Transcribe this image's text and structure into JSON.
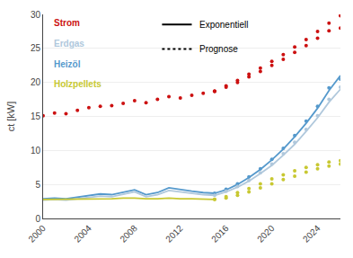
{
  "chart_data": {
    "type": "line",
    "x": [
      2000,
      2001,
      2002,
      2003,
      2004,
      2005,
      2006,
      2007,
      2008,
      2009,
      2010,
      2011,
      2012,
      2013,
      2014,
      2015,
      2016,
      2017,
      2018,
      2019,
      2020,
      2021,
      2022,
      2023,
      2024,
      2025,
      2026
    ],
    "ylabel": "ct [kW]",
    "xlim": [
      2000,
      2026
    ],
    "xticks": [
      2000,
      2004,
      2008,
      2012,
      2016,
      2020,
      2024
    ],
    "ylim": [
      0,
      30
    ],
    "yticks": [
      0,
      5,
      10,
      15,
      20,
      25,
      30
    ],
    "grid": "y",
    "series": [
      {
        "name": "Strom",
        "color": "#cc1111",
        "line_style": "none",
        "marker": "circle",
        "values": [
          15.1,
          15.5,
          15.4,
          15.9,
          16.3,
          16.5,
          16.6,
          16.9,
          17.3,
          17.0,
          17.5,
          17.9,
          17.7,
          18.1,
          18.4,
          18.7,
          null,
          null,
          null,
          null,
          null,
          null,
          null,
          null,
          null,
          null,
          null
        ]
      },
      {
        "name": "Strom",
        "projection": "Exponentiell",
        "color": "#cc1111",
        "line_style": "none",
        "marker": "circle",
        "values": [
          null,
          null,
          null,
          null,
          null,
          null,
          null,
          null,
          null,
          null,
          null,
          null,
          null,
          null,
          null,
          18.7,
          19.5,
          20.3,
          21.2,
          22.1,
          23.1,
          24.1,
          25.2,
          26.3,
          27.5,
          28.7,
          29.8
        ]
      },
      {
        "name": "Strom",
        "projection": "Prognose",
        "color": "#cc1111",
        "line_style": "none",
        "marker": "circle",
        "values": [
          null,
          null,
          null,
          null,
          null,
          null,
          null,
          null,
          null,
          null,
          null,
          null,
          null,
          null,
          null,
          18.7,
          19.3,
          20.0,
          20.8,
          21.6,
          22.5,
          23.4,
          24.4,
          25.4,
          26.5,
          27.6,
          28.0
        ]
      },
      {
        "name": "Heizöl",
        "color": "#5599cc",
        "line_style": "solid",
        "marker": "none",
        "values": [
          2.9,
          3.0,
          2.9,
          3.1,
          3.4,
          3.6,
          3.5,
          3.8,
          4.2,
          3.5,
          3.8,
          4.5,
          4.2,
          4.0,
          3.8,
          3.7,
          null,
          null,
          null,
          null,
          null,
          null,
          null,
          null,
          null,
          null,
          null
        ]
      },
      {
        "name": "Heizöl",
        "projection": "Exponentiell",
        "color": "#5599cc",
        "line_style": "solid",
        "marker": "none",
        "values": [
          null,
          null,
          null,
          null,
          null,
          null,
          null,
          null,
          null,
          null,
          null,
          null,
          null,
          null,
          null,
          3.7,
          4.2,
          5.0,
          6.0,
          7.2,
          8.6,
          10.2,
          12.0,
          14.0,
          16.2,
          18.8,
          21.0
        ]
      },
      {
        "name": "Heizöl",
        "projection": "Prognose",
        "color": "#5599cc",
        "line_style": "none",
        "marker": "circle",
        "values": [
          null,
          null,
          null,
          null,
          null,
          null,
          null,
          null,
          null,
          null,
          null,
          null,
          null,
          null,
          null,
          3.7,
          4.3,
          5.1,
          6.1,
          7.3,
          8.7,
          10.3,
          12.2,
          14.3,
          16.5,
          19.2,
          20.5
        ]
      },
      {
        "name": "Erdgas",
        "color": "#b0c8dc",
        "line_style": "solid",
        "marker": "none",
        "values": [
          2.7,
          2.8,
          2.7,
          2.9,
          3.1,
          3.3,
          3.2,
          3.5,
          3.9,
          3.2,
          3.5,
          4.1,
          3.9,
          3.7,
          3.5,
          3.4,
          null,
          null,
          null,
          null,
          null,
          null,
          null,
          null,
          null,
          null,
          null
        ]
      },
      {
        "name": "Erdgas",
        "projection": "Exponentiell",
        "color": "#b0c8dc",
        "line_style": "solid",
        "marker": "none",
        "values": [
          null,
          null,
          null,
          null,
          null,
          null,
          null,
          null,
          null,
          null,
          null,
          null,
          null,
          null,
          null,
          3.4,
          3.9,
          4.6,
          5.5,
          6.6,
          7.8,
          9.3,
          10.9,
          12.8,
          14.8,
          17.1,
          19.0
        ]
      },
      {
        "name": "Erdgas",
        "projection": "Prognose",
        "color": "#b0c8dc",
        "line_style": "none",
        "marker": "circle",
        "values": [
          null,
          null,
          null,
          null,
          null,
          null,
          null,
          null,
          null,
          null,
          null,
          null,
          null,
          null,
          null,
          3.4,
          4.0,
          4.7,
          5.6,
          6.7,
          8.0,
          9.5,
          11.2,
          13.1,
          15.1,
          17.5,
          19.3
        ]
      },
      {
        "name": "Holzpellets",
        "color": "#c8c832",
        "line_style": "solid",
        "marker": "none",
        "values": [
          2.8,
          2.8,
          2.8,
          2.8,
          2.9,
          2.9,
          2.9,
          3.0,
          3.0,
          2.9,
          2.9,
          3.0,
          2.9,
          2.9,
          2.8,
          2.8,
          null,
          null,
          null,
          null,
          null,
          null,
          null,
          null,
          null,
          null,
          null
        ]
      },
      {
        "name": "Holzpellets",
        "projection": "Exponentiell",
        "color": "#c8c832",
        "line_style": "none",
        "marker": "circle",
        "values": [
          null,
          null,
          null,
          null,
          null,
          null,
          null,
          null,
          null,
          null,
          null,
          null,
          null,
          null,
          null,
          2.8,
          3.2,
          3.8,
          4.4,
          5.1,
          5.8,
          6.4,
          7.0,
          7.5,
          7.9,
          8.3,
          8.5
        ]
      },
      {
        "name": "Holzpellets",
        "projection": "Prognose",
        "color": "#c8c832",
        "line_style": "none",
        "marker": "circle",
        "values": [
          null,
          null,
          null,
          null,
          null,
          null,
          null,
          null,
          null,
          null,
          null,
          null,
          null,
          null,
          null,
          2.8,
          3.0,
          3.4,
          3.9,
          4.5,
          5.1,
          5.7,
          6.2,
          6.8,
          7.3,
          7.7,
          8.0
        ]
      }
    ],
    "annotations": [
      {
        "text": "Strom",
        "color": "#cc1111"
      },
      {
        "text": "Erdgas",
        "color": "#b0c8dc"
      },
      {
        "text": "Heizöl",
        "color": "#5599cc"
      },
      {
        "text": "Holzpellets",
        "color": "#c8c832"
      },
      {
        "text": "Exponentiell",
        "line_style": "solid"
      },
      {
        "text": "Prognose",
        "line_style": "dotted"
      }
    ]
  }
}
